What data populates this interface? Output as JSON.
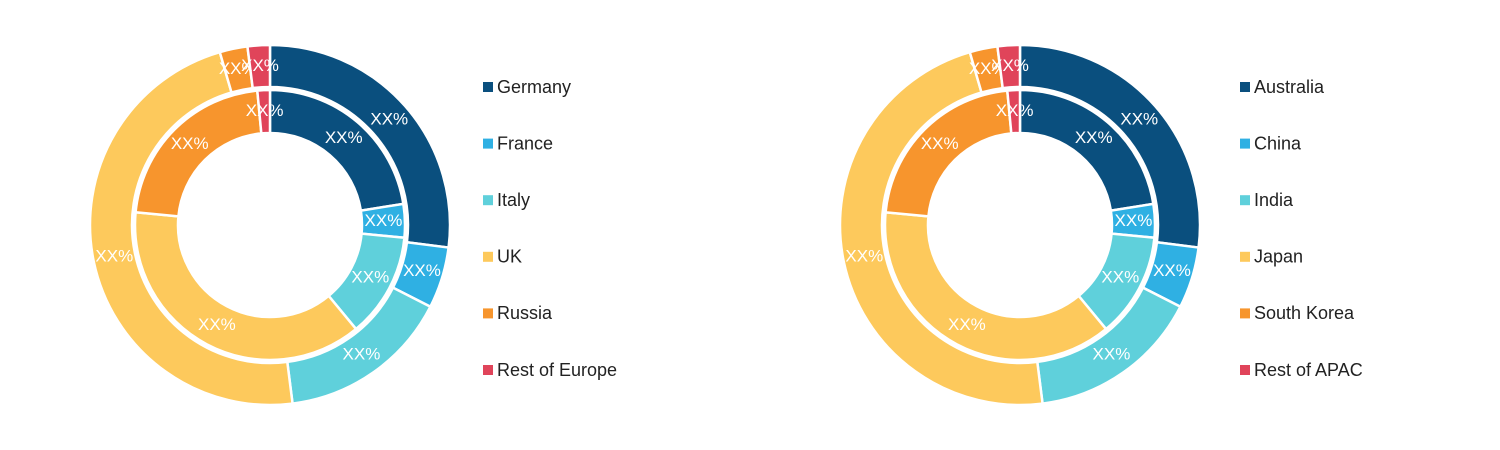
{
  "chart_data": [
    {
      "type": "donut",
      "categories": [
        "Germany",
        "France",
        "Italy",
        "UK",
        "Russia",
        "Rest of Europe"
      ],
      "colors": [
        "#0a4f7e",
        "#2fb0e3",
        "#5fd0db",
        "#fdc95c",
        "#f7952d",
        "#e0445a"
      ],
      "series": [
        {
          "values": [
            27,
            5.5,
            15.5,
            47.5,
            2.5,
            2
          ],
          "value_labels": [
            "XX%",
            "XX%",
            "XX%",
            "XX%",
            "XX%",
            "XX%"
          ]
        },
        {
          "values": [
            22.5,
            4,
            12.5,
            37.5,
            22,
            1.5
          ],
          "value_labels": [
            "XX%",
            "XX%",
            "XX%",
            "XX%",
            "XX%",
            "XX%"
          ]
        }
      ],
      "legend": "right"
    },
    {
      "type": "donut",
      "categories": [
        "Australia",
        "China",
        "India",
        "Japan",
        "South Korea",
        "Rest of APAC"
      ],
      "colors": [
        "#0a4f7e",
        "#2fb0e3",
        "#5fd0db",
        "#fdc95c",
        "#f7952d",
        "#e0445a"
      ],
      "series": [
        {
          "values": [
            27,
            5.5,
            15.5,
            47.5,
            2.5,
            2
          ],
          "value_labels": [
            "XX%",
            "XX%",
            "XX%",
            "XX%",
            "XX%",
            "XX%"
          ]
        },
        {
          "values": [
            22.5,
            4,
            12.5,
            37.5,
            22,
            1.5
          ],
          "value_labels": [
            "XX%",
            "XX%",
            "XX%",
            "XX%",
            "XX%",
            "XX%"
          ]
        }
      ],
      "legend": "right"
    }
  ]
}
